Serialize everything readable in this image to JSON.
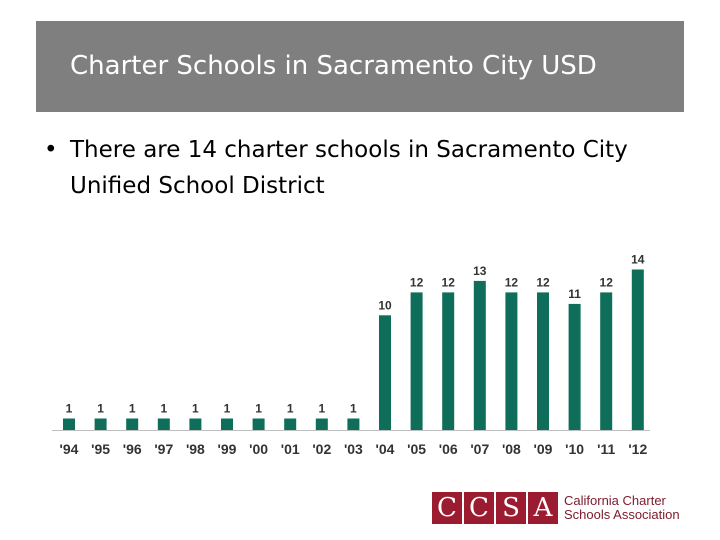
{
  "slide": {
    "title": "Charter Schools in Sacramento City USD",
    "bullet_marker": "•",
    "bullet_text": "There are 14 charter schools in Sacramento City Unified School District"
  },
  "logo": {
    "letters": [
      "C",
      "C",
      "S",
      "A"
    ],
    "line1": "California Charter",
    "line2": "Schools Association",
    "color": "#9b1b30"
  },
  "chart_data": {
    "type": "bar",
    "categories": [
      "'94",
      "'95",
      "'96",
      "'97",
      "'98",
      "'99",
      "'00",
      "'01",
      "'02",
      "'03",
      "'04",
      "'05",
      "'06",
      "'07",
      "'08",
      "'09",
      "'10",
      "'11",
      "'12"
    ],
    "values": [
      1,
      1,
      1,
      1,
      1,
      1,
      1,
      1,
      1,
      1,
      10,
      12,
      12,
      13,
      12,
      12,
      11,
      12,
      14
    ],
    "title": "",
    "xlabel": "",
    "ylabel": "",
    "bar_color": "#0f6e59",
    "data_labels": true,
    "grid": false,
    "ylim": [
      0,
      15
    ]
  }
}
